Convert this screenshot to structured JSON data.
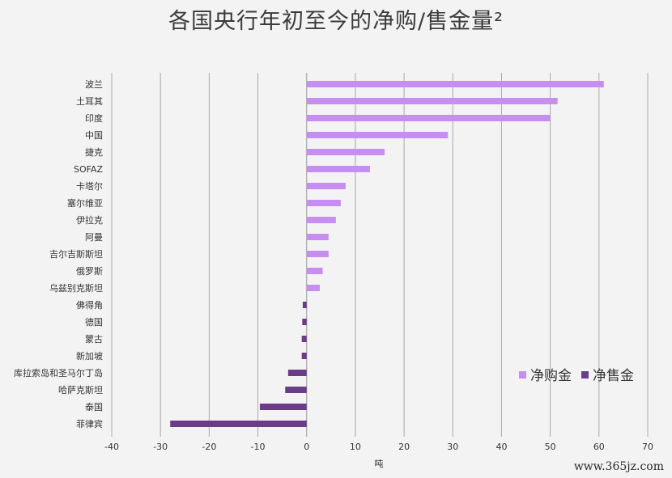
{
  "chart_data": {
    "type": "bar",
    "orientation": "horizontal",
    "title": "各国央行年初至今的净购/售金量²",
    "xlabel": "吨",
    "ylabel": "",
    "xlim": [
      -40,
      70
    ],
    "x_ticks": [
      -40,
      -30,
      -20,
      -10,
      0,
      10,
      20,
      30,
      40,
      50,
      60,
      70
    ],
    "grid": "vertical",
    "legend_position": "bottom-right",
    "categories": [
      "波兰",
      "土耳其",
      "印度",
      "中国",
      "捷克",
      "SOFAZ",
      "卡塔尔",
      "塞尔维亚",
      "伊拉克",
      "阿曼",
      "吉尔吉斯斯坦",
      "俄罗斯",
      "乌兹别克斯坦",
      "佛得角",
      "德国",
      "蒙古",
      "新加坡",
      "库拉索岛和圣马尔丁岛",
      "哈萨克斯坦",
      "泰国",
      "菲律宾"
    ],
    "values": [
      61,
      51.5,
      50,
      29,
      16,
      13,
      8,
      7,
      6,
      4.5,
      4.5,
      3.3,
      2.7,
      -0.8,
      -0.9,
      -1,
      -1,
      -3.8,
      -4.4,
      -9.6,
      -28
    ],
    "series": [
      {
        "name": "净购金",
        "color": "#c78ef2"
      },
      {
        "name": "净售金",
        "color": "#6a3d88"
      }
    ]
  },
  "watermark": "www.365jz.com"
}
